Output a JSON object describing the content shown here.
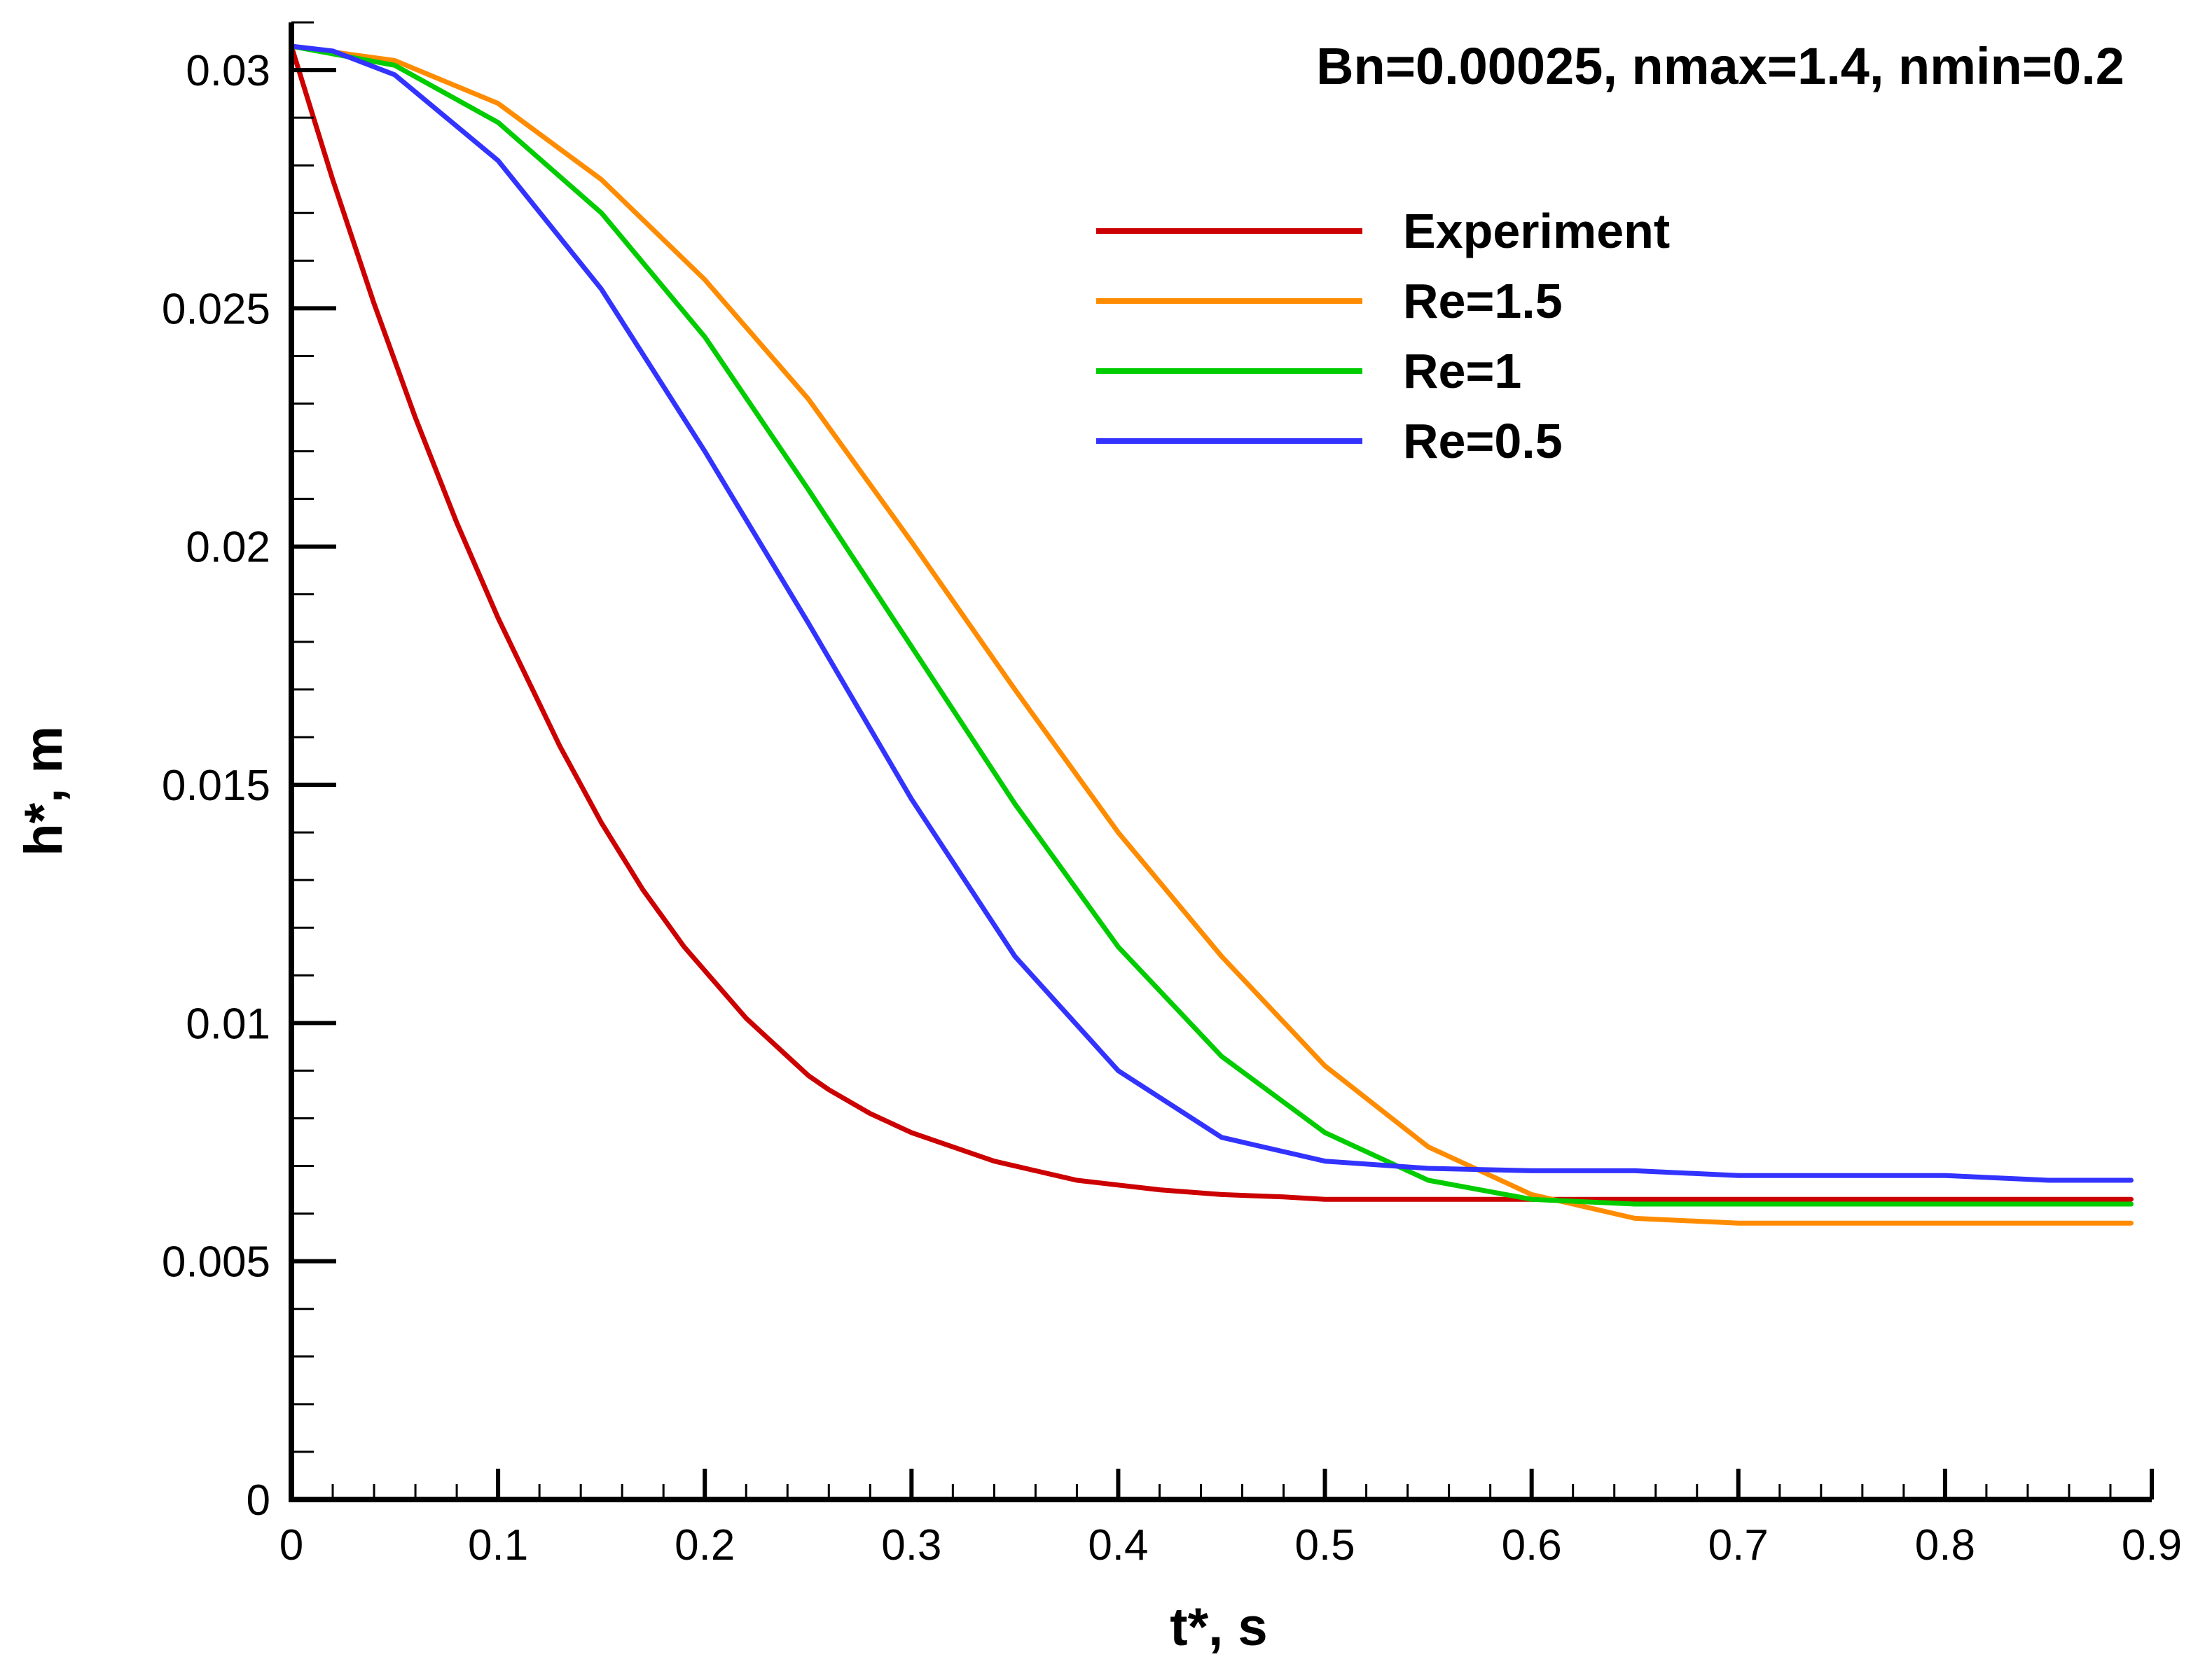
{
  "chart_data": {
    "type": "line",
    "title": "Bn=0.00025, nmax=1.4, nmin=0.2",
    "xlabel": "t*, s",
    "ylabel": "h*, m",
    "xlim": [
      0,
      0.9
    ],
    "ylim": [
      0,
      0.031
    ],
    "xticks": [
      0,
      0.1,
      0.2,
      0.3,
      0.4,
      0.5,
      0.6,
      0.7,
      0.8,
      0.9
    ],
    "xtick_labels": [
      "0",
      "0.1",
      "0.2",
      "0.3",
      "0.4",
      "0.5",
      "0.6",
      "0.7",
      "0.8",
      "0.9"
    ],
    "yticks": [
      0,
      0.005,
      0.01,
      0.015,
      0.02,
      0.025,
      0.03
    ],
    "ytick_labels": [
      "0",
      "0.005",
      "0.01",
      "0.015",
      "0.02",
      "0.025",
      "0.03"
    ],
    "grid": false,
    "legend_position": "top-right",
    "series": [
      {
        "name": "Experiment",
        "color": "#cc0000",
        "x": [
          0,
          0.01,
          0.02,
          0.03,
          0.04,
          0.05,
          0.06,
          0.07,
          0.08,
          0.09,
          0.1,
          0.11,
          0.12,
          0.13,
          0.14,
          0.15,
          0.16,
          0.17,
          0.18,
          0.19,
          0.2,
          0.21,
          0.22,
          0.23,
          0.24,
          0.25,
          0.26,
          0.28,
          0.3,
          0.32,
          0.34,
          0.36,
          0.38,
          0.4,
          0.42,
          0.45,
          0.48,
          0.5,
          0.55,
          0.6,
          0.65,
          0.7,
          0.75,
          0.8,
          0.85,
          0.89
        ],
        "y": [
          0.0305,
          0.0291,
          0.0277,
          0.0264,
          0.0251,
          0.0239,
          0.0227,
          0.0216,
          0.0205,
          0.0195,
          0.0185,
          0.0176,
          0.0167,
          0.0158,
          0.015,
          0.0142,
          0.0135,
          0.0128,
          0.0122,
          0.0116,
          0.0111,
          0.0106,
          0.0101,
          0.0097,
          0.0093,
          0.0089,
          0.0086,
          0.0081,
          0.0077,
          0.0074,
          0.0071,
          0.0069,
          0.0067,
          0.0066,
          0.0065,
          0.0064,
          0.00635,
          0.0063,
          0.0063,
          0.0063,
          0.0063,
          0.0063,
          0.0063,
          0.0063,
          0.0063,
          0.0063
        ]
      },
      {
        "name": "Re=1.5",
        "color": "#ff8c00",
        "x": [
          0,
          0.05,
          0.1,
          0.15,
          0.2,
          0.25,
          0.3,
          0.35,
          0.4,
          0.45,
          0.5,
          0.55,
          0.6,
          0.65,
          0.7,
          0.75,
          0.8,
          0.85,
          0.89
        ],
        "y": [
          0.0305,
          0.0302,
          0.0293,
          0.0277,
          0.0256,
          0.0231,
          0.0201,
          0.017,
          0.014,
          0.0114,
          0.0091,
          0.0074,
          0.0064,
          0.0059,
          0.0058,
          0.0058,
          0.0058,
          0.0058,
          0.0058
        ]
      },
      {
        "name": "Re=1",
        "color": "#00cc00",
        "x": [
          0,
          0.05,
          0.1,
          0.15,
          0.2,
          0.25,
          0.3,
          0.35,
          0.4,
          0.45,
          0.5,
          0.55,
          0.6,
          0.65,
          0.7,
          0.75,
          0.8,
          0.85,
          0.89
        ],
        "y": [
          0.0305,
          0.0301,
          0.0289,
          0.027,
          0.0244,
          0.0212,
          0.0179,
          0.0146,
          0.0116,
          0.0093,
          0.0077,
          0.0067,
          0.0063,
          0.0062,
          0.0062,
          0.0062,
          0.0062,
          0.0062,
          0.0062
        ]
      },
      {
        "name": "Re=0.5",
        "color": "#3333ff",
        "x": [
          0,
          0.02,
          0.05,
          0.1,
          0.15,
          0.2,
          0.25,
          0.3,
          0.35,
          0.4,
          0.45,
          0.5,
          0.55,
          0.6,
          0.65,
          0.7,
          0.75,
          0.8,
          0.85,
          0.89
        ],
        "y": [
          0.0305,
          0.0304,
          0.0299,
          0.0281,
          0.0254,
          0.022,
          0.0184,
          0.0147,
          0.0114,
          0.009,
          0.0076,
          0.0071,
          0.00695,
          0.0069,
          0.0069,
          0.0068,
          0.0068,
          0.0068,
          0.0067,
          0.0067
        ]
      }
    ]
  }
}
